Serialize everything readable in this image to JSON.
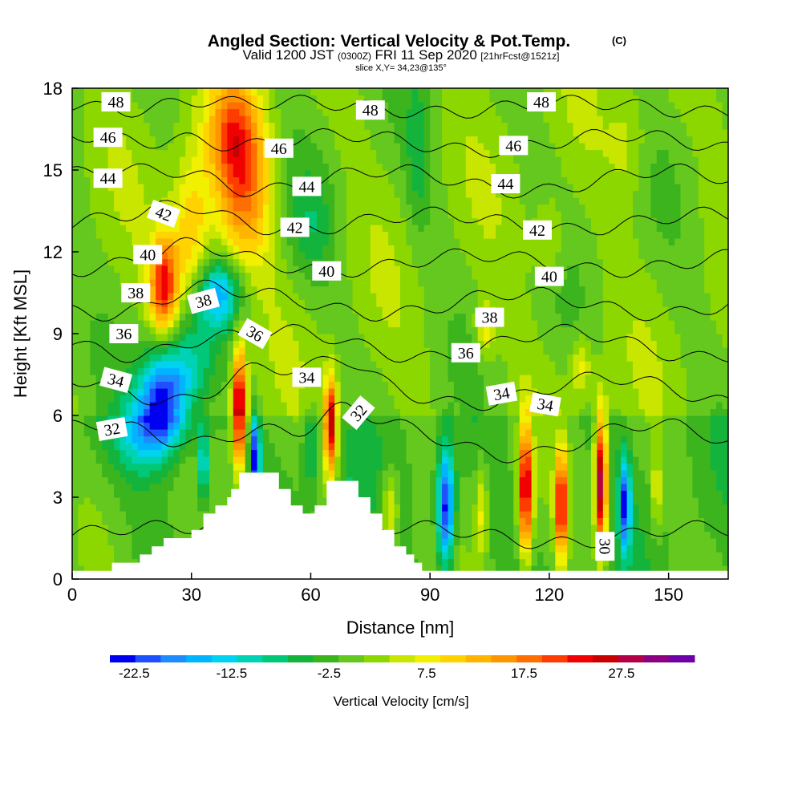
{
  "chart_data": {
    "type": "heatmap",
    "title": "Angled Section: Vertical Velocity & Pot.Temp.",
    "title_unit": "(C)",
    "subtitle_main": "Valid 1200 JST",
    "subtitle_z": "(0300Z)",
    "subtitle_date": "FRI 11 Sep 2020",
    "subtitle_fcst": "[21hrFcst@1521z]",
    "slice_label": "slice X,Y= 34,23@135°",
    "xlabel": "Distance [nm]",
    "ylabel": "Height [Kft MSL]",
    "xlim": [
      0,
      165
    ],
    "ylim": [
      0,
      18
    ],
    "x_ticks": [
      "0",
      "30",
      "60",
      "90",
      "120",
      "150"
    ],
    "y_ticks": [
      "0",
      "3",
      "6",
      "9",
      "12",
      "15",
      "18"
    ],
    "colorbar": {
      "label": "Vertical Velocity [cm/s]",
      "ticks": [
        "-22.5",
        "-12.5",
        "-2.5",
        "7.5",
        "17.5",
        "27.5"
      ],
      "range": [
        -25,
        35
      ],
      "colors": [
        "#0000f0",
        "#1e50ff",
        "#1e8cff",
        "#00b4ff",
        "#00d2f0",
        "#00d2b4",
        "#00c878",
        "#14b43c",
        "#3cb41e",
        "#64c81e",
        "#8cd700",
        "#c8e600",
        "#f0f000",
        "#ffd200",
        "#ffb400",
        "#ff9600",
        "#ff6e00",
        "#ff3c00",
        "#f00000",
        "#c80000",
        "#b40046",
        "#8c0082",
        "#6e00aa"
      ]
    },
    "terrain": [
      [
        0,
        0.3
      ],
      [
        10,
        0.3
      ],
      [
        10,
        0.6
      ],
      [
        17,
        0.6
      ],
      [
        17,
        0.9
      ],
      [
        20,
        0.9
      ],
      [
        20,
        1.2
      ],
      [
        23,
        1.2
      ],
      [
        23,
        1.5
      ],
      [
        30,
        1.5
      ],
      [
        30,
        1.8
      ],
      [
        33,
        1.8
      ],
      [
        33,
        2.4
      ],
      [
        36,
        2.4
      ],
      [
        36,
        2.7
      ],
      [
        39,
        2.7
      ],
      [
        39,
        3.0
      ],
      [
        40,
        3.0
      ],
      [
        40,
        3.3
      ],
      [
        42,
        3.3
      ],
      [
        42,
        3.9
      ],
      [
        52,
        3.9
      ],
      [
        52,
        3.3
      ],
      [
        55,
        3.3
      ],
      [
        55,
        2.7
      ],
      [
        58,
        2.7
      ],
      [
        58,
        2.4
      ],
      [
        61,
        2.4
      ],
      [
        61,
        2.7
      ],
      [
        64,
        2.7
      ],
      [
        64,
        3.6
      ],
      [
        72,
        3.6
      ],
      [
        72,
        3.0
      ],
      [
        75,
        3.0
      ],
      [
        75,
        2.4
      ],
      [
        78,
        2.4
      ],
      [
        78,
        1.8
      ],
      [
        81,
        1.8
      ],
      [
        81,
        1.2
      ],
      [
        84,
        1.2
      ],
      [
        84,
        0.9
      ],
      [
        86,
        0.9
      ],
      [
        86,
        0.6
      ],
      [
        88,
        0.6
      ],
      [
        88,
        0.3
      ],
      [
        165,
        0.3
      ]
    ],
    "velocity_cells": [
      {
        "x": 43,
        "y": 14.5,
        "sx": 7,
        "sy": 3.2,
        "v": 16
      },
      {
        "x": 40,
        "y": 16.5,
        "sx": 6,
        "sy": 2,
        "v": 10
      },
      {
        "x": 30,
        "y": 12.5,
        "sx": 5,
        "sy": 3,
        "v": 12
      },
      {
        "x": 23,
        "y": 10.8,
        "sx": 3.5,
        "sy": 1.8,
        "v": 22
      },
      {
        "x": 37,
        "y": 10.5,
        "sx": 6,
        "sy": 1.3,
        "v": -16
      },
      {
        "x": 23,
        "y": 6.8,
        "sx": 6,
        "sy": 1.8,
        "v": -20
      },
      {
        "x": 30,
        "y": 8,
        "sx": 6,
        "sy": 2,
        "v": -10
      },
      {
        "x": 19,
        "y": 5.5,
        "sx": 8,
        "sy": 1.5,
        "v": -12
      },
      {
        "x": 42,
        "y": 6.2,
        "sx": 1.7,
        "sy": 2.2,
        "v": 30
      },
      {
        "x": 46,
        "y": 4.5,
        "sx": 1.2,
        "sy": 1.5,
        "v": -22
      },
      {
        "x": 33,
        "y": 4.2,
        "sx": 1.4,
        "sy": 1.4,
        "v": -14
      },
      {
        "x": 65,
        "y": 5.6,
        "sx": 1.6,
        "sy": 1.8,
        "v": 28
      },
      {
        "x": 60,
        "y": 4.8,
        "sx": 2,
        "sy": 1.5,
        "v": -8
      },
      {
        "x": 70,
        "y": 3.2,
        "sx": 2,
        "sy": 1.5,
        "v": -4
      },
      {
        "x": 80,
        "y": 2.5,
        "sx": 2,
        "sy": 1.5,
        "v": 10
      },
      {
        "x": 94,
        "y": 2.6,
        "sx": 2.2,
        "sy": 2.2,
        "v": -24
      },
      {
        "x": 103,
        "y": 2.5,
        "sx": 1.5,
        "sy": 1.8,
        "v": 8
      },
      {
        "x": 114,
        "y": 3.3,
        "sx": 1.7,
        "sy": 2.4,
        "v": 28
      },
      {
        "x": 123,
        "y": 2.7,
        "sx": 1.5,
        "sy": 2,
        "v": 26
      },
      {
        "x": 133,
        "y": 3.5,
        "sx": 1.5,
        "sy": 2.5,
        "v": 32
      },
      {
        "x": 139,
        "y": 2.8,
        "sx": 1.4,
        "sy": 1.8,
        "v": -20
      },
      {
        "x": 147,
        "y": 3.2,
        "sx": 1.2,
        "sy": 1.5,
        "v": 8
      },
      {
        "x": 104,
        "y": 9.2,
        "sx": 2.5,
        "sy": 1,
        "v": 8
      },
      {
        "x": 128,
        "y": 7.8,
        "sx": 2.5,
        "sy": 1,
        "v": 8
      },
      {
        "x": 120,
        "y": 12.5,
        "sx": 4,
        "sy": 1.5,
        "v": 5
      },
      {
        "x": 60,
        "y": 13,
        "sx": 6,
        "sy": 2,
        "v": -5
      },
      {
        "x": 140,
        "y": 16,
        "sx": 5,
        "sy": 2,
        "v": 4
      },
      {
        "x": 87,
        "y": 15.5,
        "sx": 3,
        "sy": 3,
        "v": -5
      }
    ],
    "isentropes": [
      {
        "value": 30,
        "base": 1.6,
        "amp": 0.3
      },
      {
        "value": 32,
        "base": 5.1,
        "amp": 0.6
      },
      {
        "value": 34,
        "base": 6.9,
        "amp": 0.5
      },
      {
        "value": 36,
        "base": 8.6,
        "amp": 0.5
      },
      {
        "value": 38,
        "base": 10.1,
        "amp": 0.4
      },
      {
        "value": 40,
        "base": 11.6,
        "amp": 0.3
      },
      {
        "value": 42,
        "base": 13.1,
        "amp": 0.3
      },
      {
        "value": 44,
        "base": 14.6,
        "amp": 0.4
      },
      {
        "value": 46,
        "base": 16.0,
        "amp": 0.3
      },
      {
        "value": 48,
        "base": 17.3,
        "amp": 0.2
      }
    ],
    "contour_labels": [
      {
        "text": "48",
        "x": 11,
        "y": 17.5,
        "rot": 0
      },
      {
        "text": "48",
        "x": 75,
        "y": 17.2,
        "rot": 0
      },
      {
        "text": "48",
        "x": 118,
        "y": 17.5,
        "rot": 0
      },
      {
        "text": "46",
        "x": 9,
        "y": 16.2,
        "rot": 0
      },
      {
        "text": "46",
        "x": 52,
        "y": 15.8,
        "rot": 0
      },
      {
        "text": "46",
        "x": 111,
        "y": 15.9,
        "rot": 0
      },
      {
        "text": "44",
        "x": 9,
        "y": 14.7,
        "rot": 0
      },
      {
        "text": "44",
        "x": 59,
        "y": 14.4,
        "rot": 0
      },
      {
        "text": "44",
        "x": 109,
        "y": 14.5,
        "rot": 0
      },
      {
        "text": "42",
        "x": 23,
        "y": 13.4,
        "rot": 20
      },
      {
        "text": "42",
        "x": 56,
        "y": 12.9,
        "rot": 0
      },
      {
        "text": "42",
        "x": 117,
        "y": 12.8,
        "rot": 0
      },
      {
        "text": "40",
        "x": 19,
        "y": 11.9,
        "rot": 0
      },
      {
        "text": "40",
        "x": 64,
        "y": 11.3,
        "rot": 0
      },
      {
        "text": "40",
        "x": 120,
        "y": 11.1,
        "rot": 0
      },
      {
        "text": "38",
        "x": 16,
        "y": 10.5,
        "rot": 0
      },
      {
        "text": "38",
        "x": 33,
        "y": 10.2,
        "rot": -15
      },
      {
        "text": "38",
        "x": 105,
        "y": 9.6,
        "rot": 0
      },
      {
        "text": "36",
        "x": 13,
        "y": 9.0,
        "rot": 0
      },
      {
        "text": "36",
        "x": 46,
        "y": 9.0,
        "rot": 30
      },
      {
        "text": "36",
        "x": 99,
        "y": 8.3,
        "rot": 0
      },
      {
        "text": "34",
        "x": 11,
        "y": 7.3,
        "rot": 15
      },
      {
        "text": "34",
        "x": 59,
        "y": 7.4,
        "rot": 0
      },
      {
        "text": "34",
        "x": 108,
        "y": 6.8,
        "rot": -10
      },
      {
        "text": "34",
        "x": 119,
        "y": 6.4,
        "rot": 10
      },
      {
        "text": "32",
        "x": 10,
        "y": 5.5,
        "rot": -10
      },
      {
        "text": "32",
        "x": 72,
        "y": 6.1,
        "rot": -50
      },
      {
        "text": "30",
        "x": 134,
        "y": 1.2,
        "rot": 90
      }
    ]
  }
}
